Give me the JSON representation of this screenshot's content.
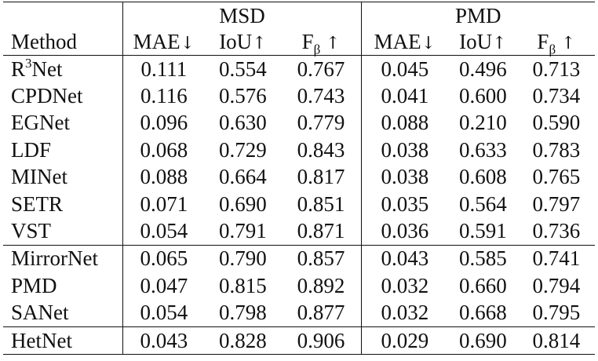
{
  "header": {
    "group_msd": "MSD",
    "group_pmd": "PMD",
    "method": "Method",
    "mae": "MAE",
    "iou": "IoU",
    "f": "F",
    "beta": "β",
    "down_arrow": "↓",
    "up_arrow": "↑"
  },
  "rows": [
    {
      "method_base": "R",
      "method_sup": "3",
      "method_rest": "Net",
      "msd": [
        "0.111",
        "0.554",
        "0.767"
      ],
      "pmd": [
        "0.045",
        "0.496",
        "0.713"
      ]
    },
    {
      "method_base": "CPDNet",
      "method_sup": "",
      "method_rest": "",
      "msd": [
        "0.116",
        "0.576",
        "0.743"
      ],
      "pmd": [
        "0.041",
        "0.600",
        "0.734"
      ]
    },
    {
      "method_base": "EGNet",
      "method_sup": "",
      "method_rest": "",
      "msd": [
        "0.096",
        "0.630",
        "0.779"
      ],
      "pmd": [
        "0.088",
        "0.210",
        "0.590"
      ]
    },
    {
      "method_base": "LDF",
      "method_sup": "",
      "method_rest": "",
      "msd": [
        "0.068",
        "0.729",
        "0.843"
      ],
      "pmd": [
        "0.038",
        "0.633",
        "0.783"
      ]
    },
    {
      "method_base": "MINet",
      "method_sup": "",
      "method_rest": "",
      "msd": [
        "0.088",
        "0.664",
        "0.817"
      ],
      "pmd": [
        "0.038",
        "0.608",
        "0.765"
      ]
    },
    {
      "method_base": "SETR",
      "method_sup": "",
      "method_rest": "",
      "msd": [
        "0.071",
        "0.690",
        "0.851"
      ],
      "pmd": [
        "0.035",
        "0.564",
        "0.797"
      ]
    },
    {
      "method_base": "VST",
      "method_sup": "",
      "method_rest": "",
      "msd": [
        "0.054",
        "0.791",
        "0.871"
      ],
      "pmd": [
        "0.036",
        "0.591",
        "0.736"
      ]
    },
    {
      "method_base": "MirrorNet",
      "method_sup": "",
      "method_rest": "",
      "msd": [
        "0.065",
        "0.790",
        "0.857"
      ],
      "pmd": [
        "0.043",
        "0.585",
        "0.741"
      ]
    },
    {
      "method_base": "PMD",
      "method_sup": "",
      "method_rest": "",
      "msd": [
        "0.047",
        "0.815",
        "0.892"
      ],
      "pmd": [
        "0.032",
        "0.660",
        "0.794"
      ]
    },
    {
      "method_base": "SANet",
      "method_sup": "",
      "method_rest": "",
      "msd": [
        "0.054",
        "0.798",
        "0.877"
      ],
      "pmd": [
        "0.032",
        "0.668",
        "0.795"
      ]
    },
    {
      "method_base": "HetNet",
      "method_sup": "",
      "method_rest": "",
      "msd": [
        "0.043",
        "0.828",
        "0.906"
      ],
      "pmd": [
        "0.029",
        "0.690",
        "0.814"
      ]
    }
  ]
}
